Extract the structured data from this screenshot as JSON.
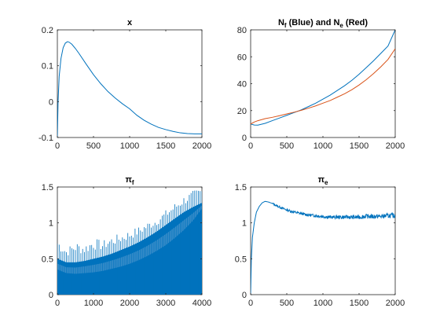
{
  "figure": {
    "background": "#ffffff",
    "blue": "#0072BD",
    "red": "#D95319"
  },
  "chart_data": [
    {
      "type": "line",
      "title": "x",
      "title_sub": "",
      "title_rest": "",
      "xlim": [
        0,
        2000
      ],
      "ylim": [
        -0.1,
        0.2
      ],
      "xticks": [
        0,
        500,
        1000,
        1500,
        2000
      ],
      "yticks": [
        -0.1,
        0,
        0.1,
        0.2
      ],
      "xtick_labels": [
        "0",
        "500",
        "1000",
        "1500",
        "2000"
      ],
      "ytick_labels": [
        "-0.1",
        "0",
        "0.1",
        "0.2"
      ],
      "series": [
        {
          "color": "#0072BD",
          "x": [
            0,
            10,
            25,
            50,
            80,
            110,
            140,
            160,
            200,
            250,
            300,
            400,
            500,
            600,
            700,
            800,
            900,
            1000,
            1100,
            1200,
            1300,
            1400,
            1500,
            1600,
            1700,
            1800,
            1900,
            2000
          ],
          "y": [
            -0.1,
            0.0,
            0.07,
            0.12,
            0.15,
            0.163,
            0.167,
            0.166,
            0.16,
            0.148,
            0.134,
            0.104,
            0.075,
            0.05,
            0.028,
            0.01,
            -0.006,
            -0.02,
            -0.038,
            -0.052,
            -0.063,
            -0.072,
            -0.078,
            -0.083,
            -0.087,
            -0.089,
            -0.09,
            -0.09
          ]
        }
      ]
    },
    {
      "type": "line",
      "title": "N",
      "title_sub": "f",
      "title_rest": " (Blue) and N",
      "title_sub2": "e",
      "title_end": " (Red)",
      "xlim": [
        0,
        2000
      ],
      "ylim": [
        0,
        80
      ],
      "xticks": [
        0,
        500,
        1000,
        1500,
        2000
      ],
      "yticks": [
        0,
        20,
        40,
        60,
        80
      ],
      "xtick_labels": [
        "0",
        "500",
        "1000",
        "1500",
        "2000"
      ],
      "ytick_labels": [
        "0",
        "20",
        "40",
        "60",
        "80"
      ],
      "series": [
        {
          "color": "#0072BD",
          "x": [
            0,
            50,
            100,
            200,
            300,
            400,
            500,
            600,
            700,
            800,
            900,
            1000,
            1100,
            1200,
            1300,
            1400,
            1500,
            1600,
            1700,
            1800,
            1900,
            2000
          ],
          "y": [
            10,
            9.3,
            9.2,
            10.5,
            12.5,
            14.5,
            16.5,
            18.5,
            20.5,
            23,
            25.5,
            28.5,
            31.5,
            35,
            38.5,
            42.5,
            47,
            52,
            57,
            62.5,
            68,
            80
          ]
        },
        {
          "color": "#D95319",
          "x": [
            0,
            50,
            100,
            200,
            300,
            400,
            500,
            600,
            700,
            800,
            900,
            1000,
            1100,
            1200,
            1300,
            1400,
            1500,
            1600,
            1700,
            1800,
            1900,
            2000
          ],
          "y": [
            10,
            11.5,
            12.5,
            14,
            15,
            16.2,
            17.5,
            18.8,
            20.2,
            21.8,
            23.5,
            25.5,
            27.5,
            30,
            32.5,
            35.5,
            39,
            43,
            47.5,
            52.5,
            58,
            66
          ]
        }
      ]
    },
    {
      "type": "area",
      "title": "π",
      "title_sub": "f",
      "title_rest": "",
      "xlim": [
        0,
        4000
      ],
      "ylim": [
        0,
        1.5
      ],
      "xticks": [
        0,
        1000,
        2000,
        3000,
        4000
      ],
      "yticks": [
        0,
        0.5,
        1,
        1.5
      ],
      "xtick_labels": [
        "0",
        "1000",
        "2000",
        "3000",
        "4000"
      ],
      "ytick_labels": [
        "0",
        "0.5",
        "1",
        "1.5"
      ],
      "series": [
        {
          "color": "#0072BD",
          "x": [
            0,
            250,
            500,
            750,
            1000,
            1250,
            1500,
            1750,
            2000,
            2250,
            2500,
            2750,
            3000,
            3250,
            3500,
            3750,
            4000
          ],
          "y_lower": [
            0.35,
            0.3,
            0.29,
            0.3,
            0.31,
            0.33,
            0.36,
            0.39,
            0.43,
            0.48,
            0.54,
            0.61,
            0.69,
            0.79,
            0.9,
            1.03,
            1.2
          ],
          "y_upper": [
            0.5,
            0.45,
            0.45,
            0.47,
            0.5,
            0.53,
            0.57,
            0.62,
            0.67,
            0.73,
            0.8,
            0.88,
            0.97,
            1.06,
            1.15,
            1.22,
            1.28
          ],
          "spikes_x": [
            0,
            250,
            500,
            750,
            1000,
            1250,
            1500,
            1750,
            2000,
            2250,
            2500,
            2750,
            3000,
            3250,
            3500,
            3750,
            4000
          ],
          "spikes_y": [
            0.8,
            0.65,
            0.75,
            0.7,
            0.8,
            0.75,
            0.82,
            0.85,
            0.9,
            0.95,
            1.02,
            1.08,
            1.18,
            1.28,
            1.38,
            1.45,
            1.5
          ]
        }
      ]
    },
    {
      "type": "line",
      "title": "π",
      "title_sub": "e",
      "title_rest": "",
      "xlim": [
        0,
        2000
      ],
      "ylim": [
        0,
        1.5
      ],
      "xticks": [
        0,
        500,
        1000,
        1500,
        2000
      ],
      "yticks": [
        0,
        0.5,
        1,
        1.5
      ],
      "xtick_labels": [
        "0",
        "500",
        "1000",
        "1500",
        "2000"
      ],
      "ytick_labels": [
        "0",
        "0.5",
        "1",
        "1.5"
      ],
      "series": [
        {
          "color": "#0072BD",
          "x": [
            0,
            10,
            25,
            50,
            80,
            120,
            160,
            200,
            250,
            300,
            400,
            500,
            600,
            700,
            800,
            900,
            1000,
            1100,
            1200,
            1300,
            1400,
            1500,
            1600,
            1700,
            1800,
            1900,
            2000
          ],
          "y": [
            0.0,
            0.5,
            0.8,
            1.0,
            1.15,
            1.23,
            1.28,
            1.3,
            1.29,
            1.27,
            1.22,
            1.18,
            1.15,
            1.13,
            1.11,
            1.1,
            1.09,
            1.08,
            1.08,
            1.08,
            1.08,
            1.08,
            1.09,
            1.09,
            1.09,
            1.1,
            1.1
          ],
          "noisy": true
        }
      ]
    }
  ]
}
